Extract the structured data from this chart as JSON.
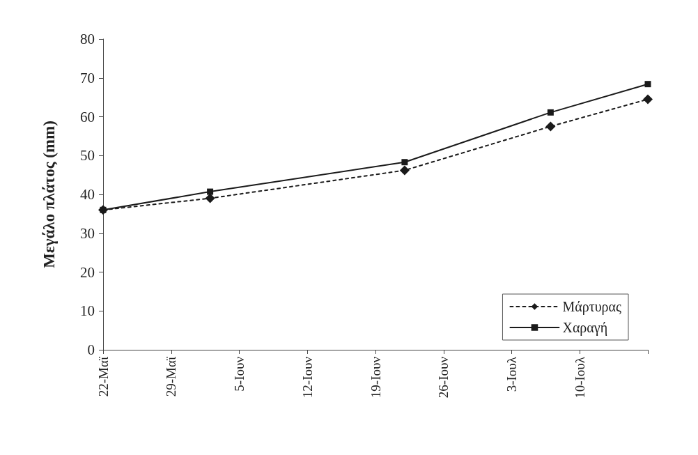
{
  "chart_data": {
    "type": "line",
    "ylabel": "Μεγάλο πλάτος (mm)",
    "x": [
      "--05-22",
      "--06-02",
      "--06-22",
      "--07-07",
      "--07-17"
    ],
    "series": [
      {
        "name": "Μάρτυρας",
        "color": "#1a1a1a",
        "marker": "diamond",
        "line_style": "dotted",
        "values": [
          36,
          39,
          46.2,
          57.5,
          64.5
        ]
      },
      {
        "name": "Χαραγή",
        "color": "#1a1a1a",
        "marker": "square",
        "line_style": "solid",
        "values": [
          36,
          40.7,
          48.3,
          61.1,
          68.4
        ]
      }
    ],
    "xlim": [
      "--05-22",
      "--07-17"
    ],
    "xticks": [
      {
        "value": "--05-22",
        "label": "22-Μαϊ"
      },
      {
        "value": "--05-29",
        "label": "29-Μαϊ"
      },
      {
        "value": "--06-05",
        "label": "5-Ιουν"
      },
      {
        "value": "--06-12",
        "label": "12-Ιουν"
      },
      {
        "value": "--06-19",
        "label": "19-Ιουν"
      },
      {
        "value": "--06-26",
        "label": "26-Ιουν"
      },
      {
        "value": "--07-03",
        "label": "3-Ιουλ"
      },
      {
        "value": "--07-10",
        "label": "10-Ιουλ"
      },
      {
        "value": "--07-17",
        "label": null
      }
    ],
    "ylim": [
      0,
      80
    ],
    "yticks": [
      0,
      10,
      20,
      30,
      40,
      50,
      60,
      70,
      80
    ],
    "grid": false,
    "legend": "bottom right"
  }
}
